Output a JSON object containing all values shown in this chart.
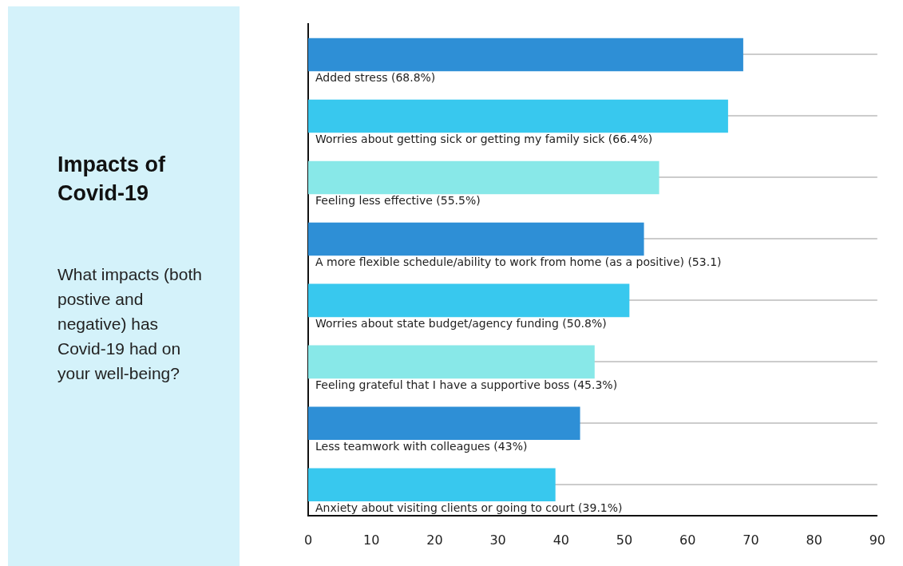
{
  "chart_data": {
    "type": "bar",
    "orientation": "horizontal",
    "title": "Impacts of Covid-19",
    "subtitle": "What impacts (both postive and negative) has Covid-19 had on your well-being?",
    "categories": [
      "Added stress (68.8%)",
      "Worries about getting sick or getting my family sick (66.4%)",
      "Feeling less effective (55.5%)",
      "A more flexible schedule/ability to work from home (as a positive) (53.1)",
      "Worries about state budget/agency funding (50.8%)",
      "Feeling grateful that I have a supportive boss (45.3%)",
      "Less teamwork with colleagues (43%)",
      "Anxiety about visiting clients or going to court (39.1%)"
    ],
    "values": [
      68.8,
      66.4,
      55.5,
      53.1,
      50.8,
      45.3,
      43,
      39.1
    ],
    "colors": [
      "#2e8fd6",
      "#38c8ee",
      "#88e8e8",
      "#2e8fd6",
      "#38c8ee",
      "#88e8e8",
      "#2e8fd6",
      "#38c8ee"
    ],
    "xlim": [
      0,
      90
    ],
    "xticks": [
      0,
      10,
      20,
      30,
      40,
      50,
      60,
      70,
      80,
      90
    ],
    "grid": "y"
  }
}
